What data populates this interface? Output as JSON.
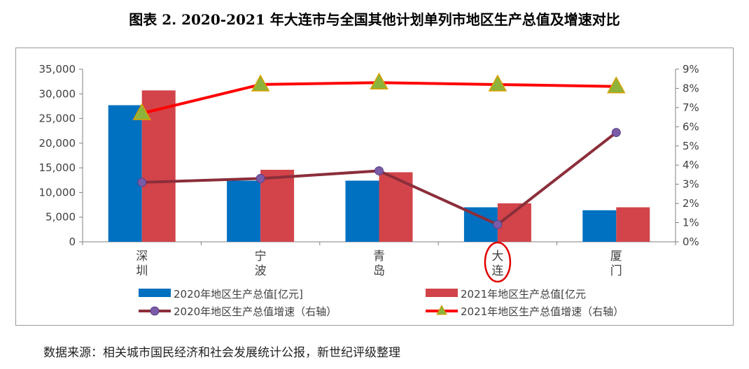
{
  "title": "图表 2.   2020-2021 年大连市与全国其他计划单列市地区生产总值及增速对比",
  "source": "数据来源：相关城市国民经济和社会发展统计公报，新世纪评级整理",
  "colors": {
    "bar2020": "#0070C0",
    "bar2021": "#D2444A",
    "line2020": "#8B2E3A",
    "line2021": "#FF0000",
    "marker2020": "#7A5BA8",
    "marker2021": "#8DB33A",
    "highlight": "#E00000"
  },
  "chart_data": {
    "type": "bar",
    "categories": [
      "深\n圳",
      "宁\n波",
      "青\n岛",
      "大\n连",
      "厦\n门"
    ],
    "highlighted_category": "大\n连",
    "y_left": {
      "ylim": [
        0,
        35000
      ],
      "ticks": [
        "0",
        "5,000",
        "10,000",
        "15,000",
        "20,000",
        "25,000",
        "30,000",
        "35,000"
      ]
    },
    "y_right": {
      "ylim": [
        0,
        9
      ],
      "ticks": [
        "0%",
        "1%",
        "2%",
        "3%",
        "4%",
        "5%",
        "6%",
        "7%",
        "8%",
        "9%"
      ]
    },
    "series": [
      {
        "name": "2020年地区生产总值[亿元]",
        "kind": "bar",
        "axis": "left",
        "values": [
          27700,
          12400,
          12400,
          7000,
          6400
        ]
      },
      {
        "name": "2021年地区生产总值[亿元",
        "kind": "bar",
        "axis": "left",
        "values": [
          30700,
          14600,
          14100,
          7800,
          7000
        ]
      },
      {
        "name": "2020年地区生产总值增速（右轴）",
        "kind": "line",
        "axis": "right",
        "values": [
          3.1,
          3.3,
          3.7,
          0.9,
          5.7
        ]
      },
      {
        "name": "2021年地区生产总值增速（右轴）",
        "kind": "line",
        "axis": "right",
        "values": [
          6.7,
          8.2,
          8.3,
          8.2,
          8.1
        ]
      }
    ],
    "legend_position": "bottom",
    "grid": false
  }
}
